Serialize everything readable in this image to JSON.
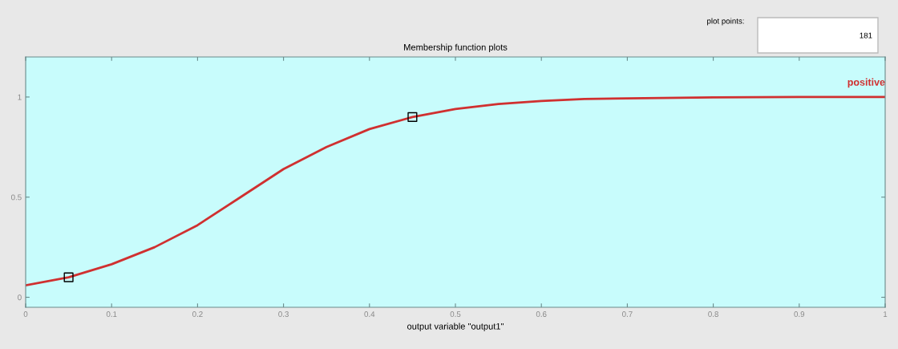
{
  "chart_data": {
    "type": "line",
    "title": "Membership function plots",
    "xlabel": "output variable \"output1\"",
    "x": [
      0,
      0.05,
      0.1,
      0.15,
      0.2,
      0.25,
      0.3,
      0.35,
      0.4,
      0.45,
      0.5,
      0.55,
      0.6,
      0.65,
      0.7,
      0.8,
      0.9,
      1
    ],
    "series": [
      {
        "name": "positive",
        "color": "#d03030",
        "values": [
          0.06,
          0.1,
          0.165,
          0.25,
          0.36,
          0.5,
          0.64,
          0.75,
          0.84,
          0.9,
          0.94,
          0.965,
          0.98,
          0.99,
          0.993,
          0.998,
          1.0,
          1.0
        ]
      },
      {
        "type": "scatter",
        "marker": "square",
        "color": "#000000",
        "x": [
          0.05,
          0.45
        ],
        "values": [
          0.1,
          0.9
        ]
      }
    ],
    "annotations": [
      "plot points:",
      "181"
    ],
    "xlim": [
      0,
      1
    ],
    "ylim": [
      -0.05,
      1.2
    ],
    "xticks": [
      0,
      0.1,
      0.2,
      0.3,
      0.4,
      0.5,
      0.6,
      0.7,
      0.8,
      0.9,
      1
    ],
    "yticks": [
      0,
      0.5,
      1
    ],
    "grid": false,
    "legend": false
  }
}
